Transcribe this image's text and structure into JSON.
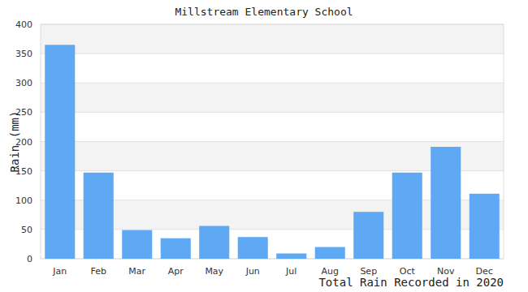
{
  "chart_data": {
    "type": "bar",
    "title": "Millstream Elementary School",
    "ylabel": "Rain (mm)",
    "xlabel": "Total Rain Recorded in 2020",
    "categories": [
      "Jan",
      "Feb",
      "Mar",
      "Apr",
      "May",
      "Jun",
      "Jul",
      "Aug",
      "Sep",
      "Oct",
      "Nov",
      "Dec"
    ],
    "values": [
      365,
      147,
      49,
      35,
      56,
      37,
      9,
      20,
      80,
      147,
      191,
      111
    ],
    "color": "#5ea8f4",
    "ylim": [
      0,
      400
    ],
    "yticks": [
      0,
      50,
      100,
      150,
      200,
      250,
      300,
      350,
      400
    ],
    "grid": true
  }
}
